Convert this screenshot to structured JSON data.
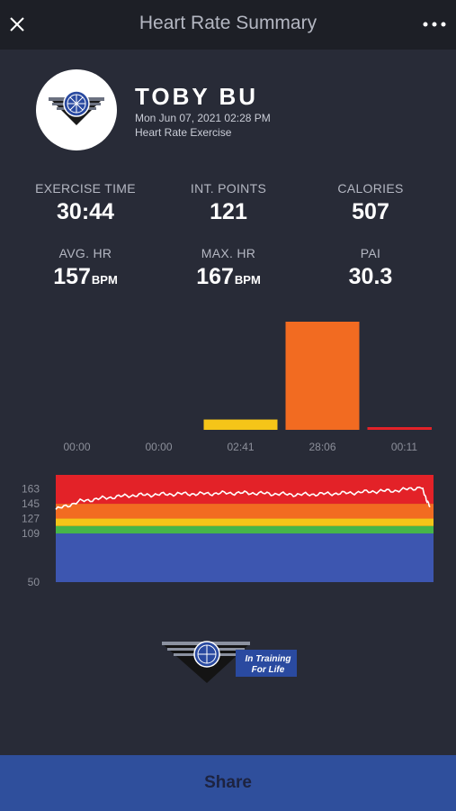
{
  "header": {
    "title": "Heart Rate Summary",
    "close_icon": "close-icon",
    "more_icon": "more-horizontal-icon"
  },
  "user": {
    "name": "TOBY BU",
    "date": "Mon Jun 07, 2021 02:28 PM",
    "activity": "Heart Rate Exercise",
    "avatar_icon": "cycling-logo-icon"
  },
  "stats": {
    "exercise_time": {
      "label": "EXERCISE TIME",
      "value": "30:44"
    },
    "int_points": {
      "label": "INT. POINTS",
      "value": "121"
    },
    "calories": {
      "label": "CALORIES",
      "value": "507"
    },
    "avg_hr": {
      "label": "AVG. HR",
      "value": "157",
      "unit": "BPM"
    },
    "max_hr": {
      "label": "MAX. HR",
      "value": "167",
      "unit": "BPM"
    },
    "pai": {
      "label": "PAI",
      "value": "30.3"
    }
  },
  "chart_data": [
    {
      "type": "bar",
      "categories": [
        "00:00",
        "00:00",
        "02:41",
        "28:06",
        "00:11"
      ],
      "values": [
        0,
        0,
        2.68,
        28.1,
        0.18
      ],
      "colors": [
        "#3d56b0",
        "#46b649",
        "#f5c518",
        "#f26b21",
        "#e32228"
      ],
      "ylim": [
        0,
        28.1
      ]
    },
    {
      "type": "line",
      "y_ticks": [
        "163",
        "145",
        "127",
        "109",
        "50"
      ],
      "zones": [
        {
          "from": 50,
          "to": 109,
          "color": "#3d56b0"
        },
        {
          "from": 109,
          "to": 118,
          "color": "#46b649"
        },
        {
          "from": 118,
          "to": 127,
          "color": "#f5c518"
        },
        {
          "from": 127,
          "to": 145,
          "color": "#f26b21"
        },
        {
          "from": 145,
          "to": 180,
          "color": "#e32228"
        }
      ],
      "ylim": [
        50,
        180
      ],
      "x": [
        0,
        2,
        4,
        6,
        8,
        10,
        12,
        14,
        16,
        18,
        20,
        22,
        24,
        26,
        28,
        30,
        30.7
      ],
      "y": [
        138,
        148,
        152,
        155,
        156,
        157,
        157,
        158,
        158,
        157,
        156,
        157,
        158,
        160,
        161,
        165,
        141
      ]
    }
  ],
  "footer_logo": {
    "line1": "In Training",
    "line2": "For Life"
  },
  "share": {
    "label": "Share"
  }
}
